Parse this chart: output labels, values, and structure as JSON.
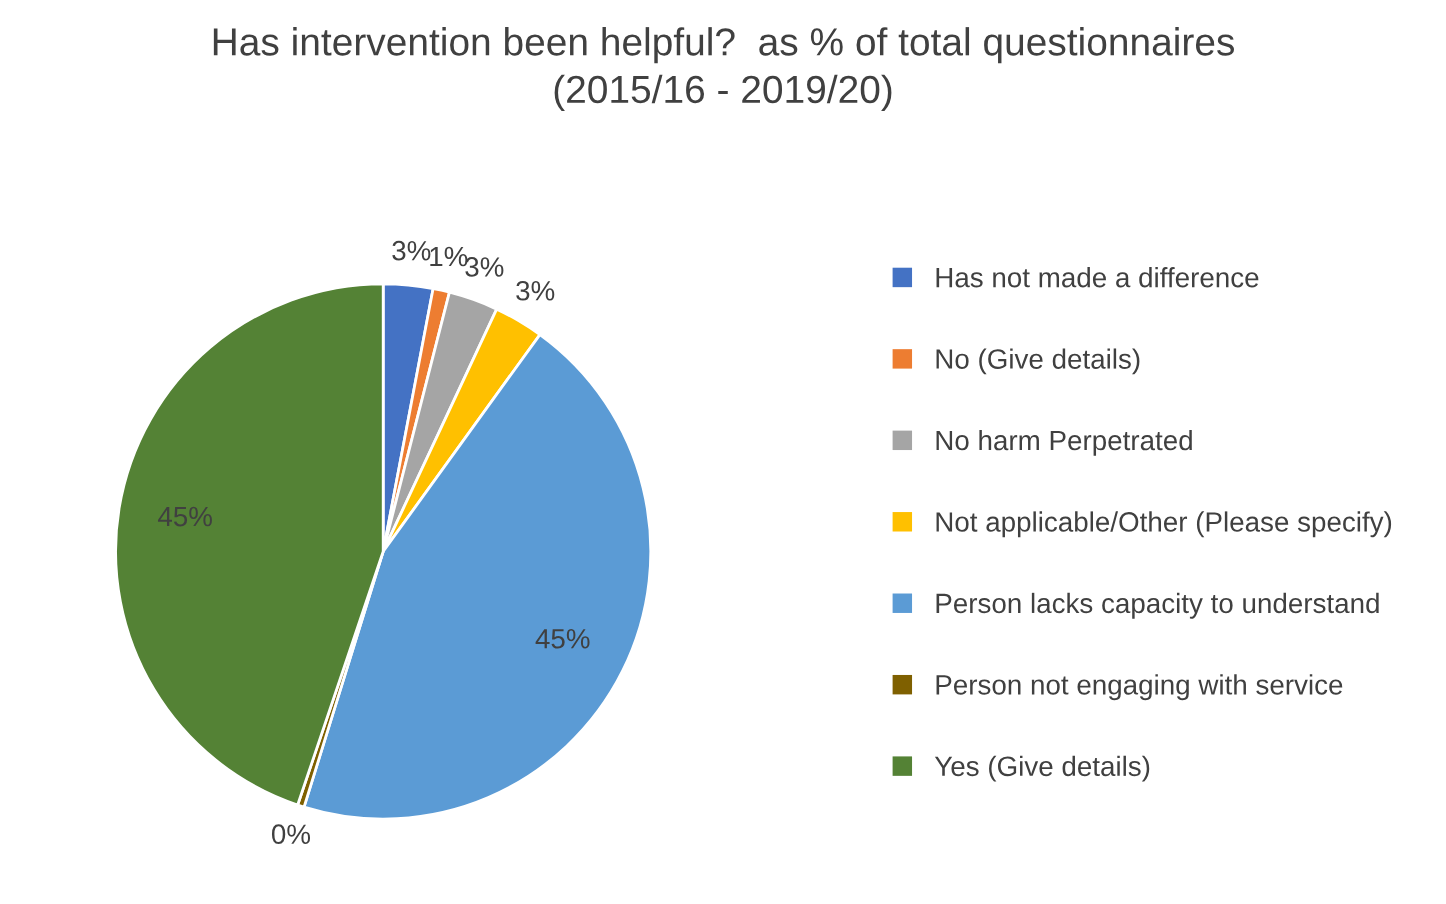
{
  "chart_data": {
    "type": "pie",
    "title": "Has intervention been helpful?  as % of total questionnaires\n(2015/16 - 2019/20)",
    "categories": [
      "Has not made a difference",
      "No (Give details)",
      "No harm Perpetrated",
      "Not applicable/Other (Please specify)",
      "Person lacks capacity to understand",
      "Person not engaging with service",
      "Yes (Give details)"
    ],
    "values": [
      3,
      1,
      3,
      3,
      45,
      0.4,
      45
    ],
    "value_labels": [
      "3%",
      "1%",
      "3%",
      "3%",
      "45%",
      "0%",
      "45%"
    ],
    "colors": [
      "#4472c4",
      "#ed7d31",
      "#a5a5a5",
      "#ffc000",
      "#5b9bd5",
      "#7f6000",
      "#548235"
    ],
    "legend": "right"
  }
}
